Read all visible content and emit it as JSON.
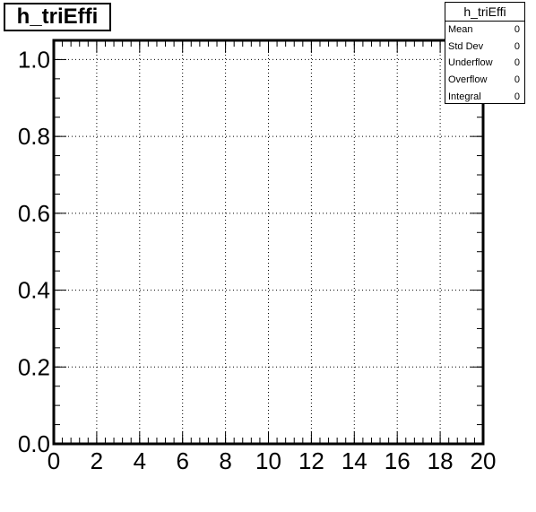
{
  "title": "h_triEffi",
  "stats": {
    "header": "h_triEffi",
    "rows": [
      {
        "label": "Mean",
        "value": "0"
      },
      {
        "label": "Std Dev",
        "value": "0"
      },
      {
        "label": "Underflow",
        "value": "0"
      },
      {
        "label": "Overflow",
        "value": "0"
      },
      {
        "label": "Integral",
        "value": "0"
      }
    ]
  },
  "chart_data": {
    "type": "bar",
    "title": "h_triEffi",
    "xlabel": "",
    "ylabel": "",
    "xlim": [
      0,
      20
    ],
    "ylim": [
      0,
      1.05
    ],
    "x_ticks": [
      "0",
      "2",
      "4",
      "6",
      "8",
      "10",
      "12",
      "14",
      "16",
      "18",
      "20"
    ],
    "y_ticks": [
      "0.0",
      "0.2",
      "0.4",
      "0.6",
      "0.8",
      "1.0"
    ],
    "grid": true,
    "series": [
      {
        "values": []
      }
    ],
    "colors": {
      "axis": "#000000",
      "grid": "#000000",
      "background": "#ffffff"
    }
  }
}
